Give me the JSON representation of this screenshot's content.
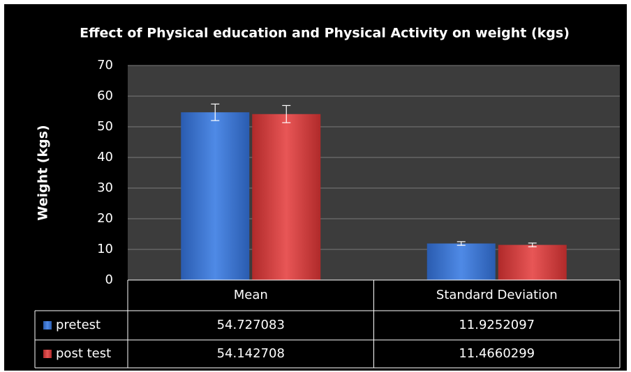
{
  "chart_data": {
    "type": "bar",
    "title": "Effect of Physical education and Physical Activity on weight (kgs)",
    "y_label": "Weight (kgs)",
    "categories": [
      "Mean",
      "Standard Deviation"
    ],
    "series": [
      {
        "name": "pretest",
        "color": "#3f78d6",
        "values": [
          54.727083,
          11.9252097
        ],
        "errors": [
          2.7,
          0.6
        ]
      },
      {
        "name": "post test",
        "color": "#d84343",
        "values": [
          54.142708,
          11.4660299
        ],
        "errors": [
          2.8,
          0.6
        ]
      }
    ],
    "ylim": [
      0,
      70
    ],
    "yticks": [
      0,
      10,
      20,
      30,
      40,
      50,
      60,
      70
    ],
    "grid": true,
    "data_table": true
  }
}
